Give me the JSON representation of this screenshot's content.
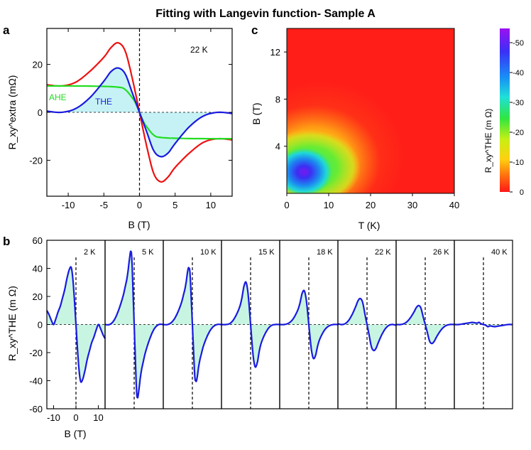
{
  "title": "Fitting with Langevin function- Sample A",
  "panels": {
    "a": {
      "label": "a",
      "xlabel": "B (T)",
      "ylabel": "R_xy^extra (mΩ)",
      "annotation": "22 K"
    },
    "b": {
      "label": "b",
      "xlabel": "B (T)",
      "ylabel": "R_xy^THE (m Ω)"
    },
    "c": {
      "label": "c",
      "xlabel": "T (K)",
      "ylabel": "B (T)",
      "colorbar_label": "R_xy^THE (m Ω)"
    }
  },
  "colors": {
    "ahe": "#22dd22",
    "the": "#1a1ae0",
    "total": "#ee1111",
    "fill_a": "#c6f2f5",
    "fill_b": "#c8f5e2",
    "dash": "#000000"
  },
  "chart_data": [
    {
      "type": "line",
      "panel": "a",
      "title": "",
      "xlabel": "B (T)",
      "ylabel": "R_xy^extra (mΩ)",
      "xlim": [
        -13,
        13
      ],
      "ylim": [
        -35,
        35
      ],
      "xticks": [
        -10,
        -5,
        0,
        5,
        10
      ],
      "yticks": [
        -20,
        0,
        20
      ],
      "annotation": "22 K",
      "series": [
        {
          "name": "AHE",
          "color": "#22dd22",
          "x": [
            -13,
            -10,
            -6,
            -3,
            -2,
            -1,
            -0.5,
            0,
            0.5,
            1,
            2,
            3,
            6,
            10,
            13
          ],
          "y": [
            11,
            11,
            10.9,
            10.5,
            9.5,
            6,
            3.5,
            0,
            -3.5,
            -6,
            -9.5,
            -10.5,
            -10.9,
            -11,
            -11
          ]
        },
        {
          "name": "THE",
          "color": "#1a1ae0",
          "x": [
            -13,
            -11,
            -9,
            -7,
            -5,
            -4,
            -3,
            -2,
            -1,
            0,
            1,
            2,
            3,
            4,
            5,
            7,
            9,
            11,
            13
          ],
          "y": [
            0.5,
            0,
            1.5,
            6,
            13,
            17,
            18.5,
            16,
            8,
            0,
            -8,
            -16,
            -18.5,
            -17,
            -13,
            -6,
            -1.5,
            0,
            -0.5
          ]
        },
        {
          "name": "Total",
          "color": "#ee1111",
          "x": [
            -13,
            -11,
            -9,
            -7,
            -5,
            -4,
            -3,
            -2,
            -1,
            0,
            1,
            2,
            3,
            4,
            5,
            7,
            9,
            11,
            13
          ],
          "y": [
            11.5,
            11,
            12.5,
            17,
            23,
            27,
            29,
            25.5,
            14,
            0,
            -14,
            -25.5,
            -29,
            -27,
            -23,
            -17,
            -12.5,
            -11,
            -11.5
          ]
        }
      ]
    },
    {
      "type": "line",
      "panel": "b",
      "title": "",
      "xlabel": "B (T)",
      "ylabel": "R_xy^THE (m Ω)",
      "xlim": [
        -13,
        13
      ],
      "ylim": [
        -60,
        60
      ],
      "xticks": [
        -10,
        0,
        10
      ],
      "yticks": [
        -60,
        -40,
        -20,
        0,
        20,
        40,
        60
      ],
      "series": [
        {
          "name": "2 K",
          "x": [
            -13,
            -12,
            -11,
            -10,
            -9,
            -8,
            -7,
            -6,
            -5,
            -4,
            -3,
            -2,
            -1,
            0,
            1,
            2,
            3,
            4,
            5,
            6,
            7,
            8,
            9,
            10,
            11,
            12,
            13
          ],
          "y": [
            10,
            7,
            3,
            0,
            4,
            9,
            13,
            19,
            25,
            33,
            39,
            40,
            25,
            0,
            -25,
            -40,
            -39,
            -33,
            -25,
            -19,
            -13,
            -9,
            -4,
            0,
            -3,
            -7,
            -10
          ]
        },
        {
          "name": "5 K",
          "x": [
            -13,
            -11,
            -9,
            -7,
            -5,
            -4,
            -3,
            -2,
            -1.5,
            -1,
            0,
            1,
            1.5,
            2,
            3,
            4,
            5,
            7,
            9,
            11,
            13
          ],
          "y": [
            0,
            0,
            3,
            10,
            20,
            27,
            35,
            48,
            52,
            45,
            0,
            -45,
            -52,
            -48,
            -35,
            -27,
            -20,
            -10,
            -3,
            0,
            0
          ]
        },
        {
          "name": "10 K",
          "x": [
            -13,
            -11,
            -9,
            -7,
            -5,
            -4,
            -3,
            -2,
            -1.5,
            -1,
            0,
            1,
            1.5,
            2,
            3,
            4,
            5,
            7,
            9,
            11,
            13
          ],
          "y": [
            0,
            0,
            2,
            7,
            15,
            21,
            28,
            39,
            40,
            35,
            0,
            -35,
            -40,
            -39,
            -28,
            -21,
            -15,
            -7,
            -2,
            0,
            0
          ]
        },
        {
          "name": "15 K",
          "x": [
            -13,
            -11,
            -9,
            -7,
            -5,
            -4,
            -3,
            -2,
            -1,
            0,
            1,
            2,
            3,
            4,
            5,
            7,
            9,
            11,
            13
          ],
          "y": [
            0,
            0,
            1,
            5,
            12,
            18,
            27,
            30,
            20,
            0,
            -20,
            -30,
            -27,
            -18,
            -12,
            -5,
            -1,
            0,
            0
          ]
        },
        {
          "name": "18 K",
          "x": [
            -13,
            -11,
            -9,
            -7,
            -5,
            -4,
            -3,
            -2,
            -1,
            0,
            1,
            2,
            3,
            4,
            5,
            7,
            9,
            11,
            13
          ],
          "y": [
            0,
            0,
            1,
            4,
            10,
            15,
            22,
            24,
            16,
            0,
            -16,
            -24,
            -22,
            -15,
            -10,
            -4,
            -1,
            0,
            0
          ]
        },
        {
          "name": "22 K",
          "x": [
            -13,
            -11,
            -9,
            -7,
            -5,
            -4,
            -3,
            -2,
            -1,
            0,
            1,
            2,
            3,
            4,
            5,
            7,
            9,
            11,
            13
          ],
          "y": [
            0.5,
            0,
            1.5,
            6,
            13,
            17,
            18.5,
            16,
            8,
            0,
            -8,
            -16,
            -18.5,
            -17,
            -13,
            -6,
            -1.5,
            0,
            -0.5
          ]
        },
        {
          "name": "26 K",
          "x": [
            -13,
            -11,
            -9,
            -7,
            -5,
            -4,
            -3,
            -2,
            -1,
            0,
            1,
            2,
            3,
            4,
            5,
            7,
            9,
            11,
            13
          ],
          "y": [
            0,
            0,
            1,
            4,
            9,
            12,
            13.5,
            12,
            6,
            0,
            -6,
            -12,
            -13.5,
            -12,
            -9,
            -4,
            -1,
            0,
            0
          ]
        },
        {
          "name": "40 K",
          "x": [
            -13,
            -11,
            -9,
            -7,
            -5,
            -3,
            -2,
            -1,
            0,
            1,
            2,
            3,
            5,
            7,
            9,
            11,
            13
          ],
          "y": [
            0,
            0,
            0.5,
            1,
            1.5,
            1,
            1.5,
            0.5,
            0,
            -0.5,
            -1.5,
            -1,
            -1.5,
            -1,
            -0.5,
            0,
            0
          ]
        }
      ]
    },
    {
      "type": "heatmap",
      "panel": "c",
      "title": "",
      "xlabel": "T (K)",
      "ylabel": "B (T)",
      "xlim": [
        0,
        40
      ],
      "ylim": [
        0,
        14
      ],
      "xticks": [
        0,
        10,
        20,
        30,
        40
      ],
      "yticks": [
        4,
        8,
        12
      ],
      "peak": {
        "T": 4.5,
        "B": 2.2,
        "value": -53
      },
      "colorbar": {
        "label": "R_xy^THE (m Ω)",
        "range": [
          -55,
          0
        ],
        "ticks": [
          -50,
          -40,
          -30,
          -20,
          -10,
          0
        ]
      }
    }
  ]
}
